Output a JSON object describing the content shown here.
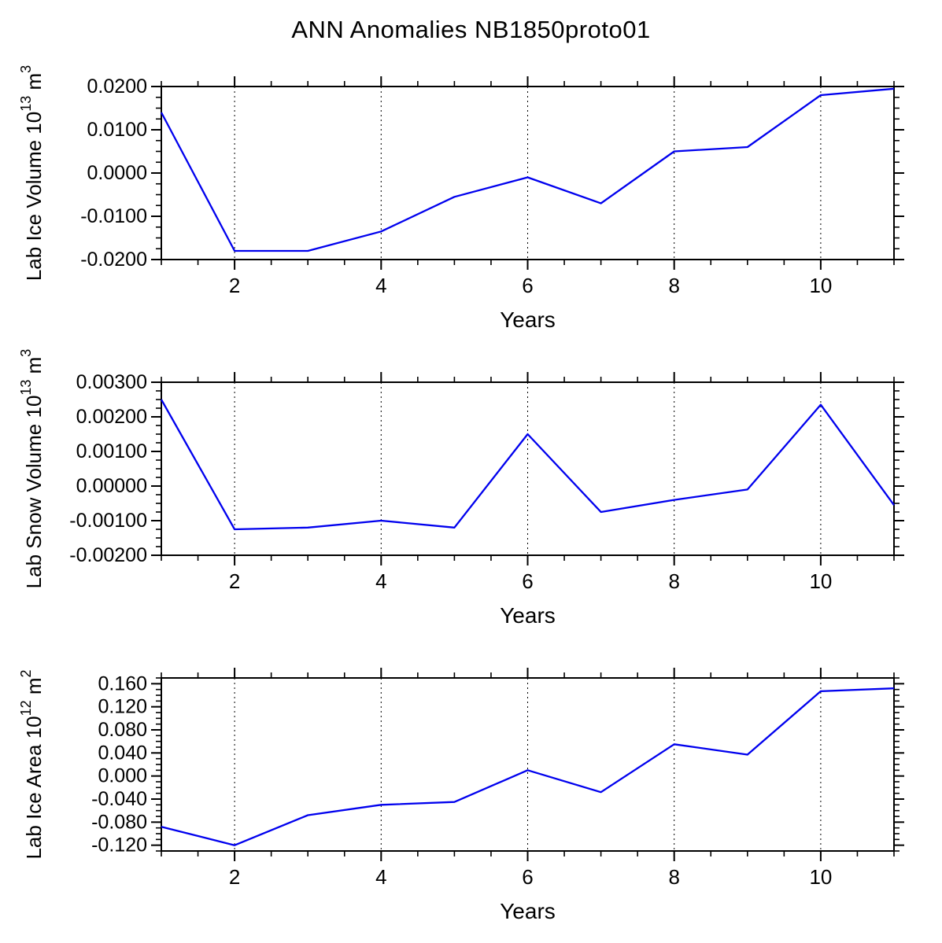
{
  "page": {
    "title": "ANN Anomalies NB1850proto01"
  },
  "colors": {
    "background": "#ffffff",
    "axis": "#000000",
    "grid": "#000000",
    "line": "#0000ee"
  },
  "chart_data": [
    {
      "type": "line",
      "xlabel": "Years",
      "ylabel": "Lab Ice Volume 10^13 m^3",
      "ylabel_parts": [
        {
          "t": "Lab Ice Volume 10"
        },
        {
          "t": "13",
          "sup": true
        },
        {
          "t": " m"
        },
        {
          "t": "3",
          "sup": true
        }
      ],
      "x": [
        1,
        2,
        3,
        4,
        5,
        6,
        7,
        8,
        9,
        10,
        11
      ],
      "values": [
        0.014,
        -0.018,
        -0.018,
        -0.0135,
        -0.0055,
        -0.001,
        -0.007,
        0.005,
        0.006,
        0.018,
        0.0195
      ],
      "xlim": [
        1,
        11
      ],
      "ylim": [
        -0.02,
        0.02
      ],
      "xticks": [
        {
          "value": 2,
          "label": "2"
        },
        {
          "value": 4,
          "label": "4"
        },
        {
          "value": 6,
          "label": "6"
        },
        {
          "value": 8,
          "label": "8"
        },
        {
          "value": 10,
          "label": "10"
        }
      ],
      "yticks": [
        {
          "value": 0.02,
          "label": "0.0200"
        },
        {
          "value": 0.01,
          "label": "0.0100"
        },
        {
          "value": 0.0,
          "label": "0.0000"
        },
        {
          "value": -0.01,
          "label": "-0.0100"
        },
        {
          "value": -0.02,
          "label": "-0.0200"
        }
      ],
      "xminor_step": 0.5,
      "yminor_step": 0.0025,
      "grid": "vertical-dashed"
    },
    {
      "type": "line",
      "xlabel": "Years",
      "ylabel": "Lab Snow Volume 10^13 m^3",
      "ylabel_parts": [
        {
          "t": "Lab Snow Volume 10"
        },
        {
          "t": "13",
          "sup": true
        },
        {
          "t": " m"
        },
        {
          "t": "3",
          "sup": true
        }
      ],
      "x": [
        1,
        2,
        3,
        4,
        5,
        6,
        7,
        8,
        9,
        10,
        11
      ],
      "values": [
        0.0025,
        -0.00125,
        -0.0012,
        -0.001,
        -0.0012,
        0.0015,
        -0.00075,
        -0.0004,
        -0.0001,
        0.00235,
        -0.00055
      ],
      "xlim": [
        1,
        11
      ],
      "ylim": [
        -0.002,
        0.003
      ],
      "xticks": [
        {
          "value": 2,
          "label": "2"
        },
        {
          "value": 4,
          "label": "4"
        },
        {
          "value": 6,
          "label": "6"
        },
        {
          "value": 8,
          "label": "8"
        },
        {
          "value": 10,
          "label": "10"
        }
      ],
      "yticks": [
        {
          "value": 0.003,
          "label": "0.00300"
        },
        {
          "value": 0.002,
          "label": "0.00200"
        },
        {
          "value": 0.001,
          "label": "0.00100"
        },
        {
          "value": 0.0,
          "label": "0.00000"
        },
        {
          "value": -0.001,
          "label": "-0.00100"
        },
        {
          "value": -0.002,
          "label": "-0.00200"
        }
      ],
      "xminor_step": 0.5,
      "yminor_step": 0.00025,
      "grid": "vertical-dashed"
    },
    {
      "type": "line",
      "xlabel": "Years",
      "ylabel": "Lab Ice Area 10^12 m^2",
      "ylabel_parts": [
        {
          "t": "Lab Ice Area 10"
        },
        {
          "t": "12",
          "sup": true
        },
        {
          "t": " m"
        },
        {
          "t": "2",
          "sup": true
        }
      ],
      "x": [
        1,
        2,
        3,
        4,
        5,
        6,
        7,
        8,
        9,
        10,
        11
      ],
      "values": [
        -0.088,
        -0.12,
        -0.068,
        -0.05,
        -0.045,
        0.01,
        -0.028,
        0.055,
        0.037,
        0.147,
        0.152
      ],
      "xlim": [
        1,
        11
      ],
      "ylim": [
        -0.13,
        0.17
      ],
      "xticks": [
        {
          "value": 2,
          "label": "2"
        },
        {
          "value": 4,
          "label": "4"
        },
        {
          "value": 6,
          "label": "6"
        },
        {
          "value": 8,
          "label": "8"
        },
        {
          "value": 10,
          "label": "10"
        }
      ],
      "yticks": [
        {
          "value": 0.16,
          "label": "0.160"
        },
        {
          "value": 0.12,
          "label": "0.120"
        },
        {
          "value": 0.08,
          "label": "0.080"
        },
        {
          "value": 0.04,
          "label": "0.040"
        },
        {
          "value": 0.0,
          "label": "0.000"
        },
        {
          "value": -0.04,
          "label": "-0.040"
        },
        {
          "value": -0.08,
          "label": "-0.080"
        },
        {
          "value": -0.12,
          "label": "-0.120"
        }
      ],
      "xminor_step": 0.5,
      "yminor_step": 0.01,
      "grid": "vertical-dashed"
    }
  ]
}
